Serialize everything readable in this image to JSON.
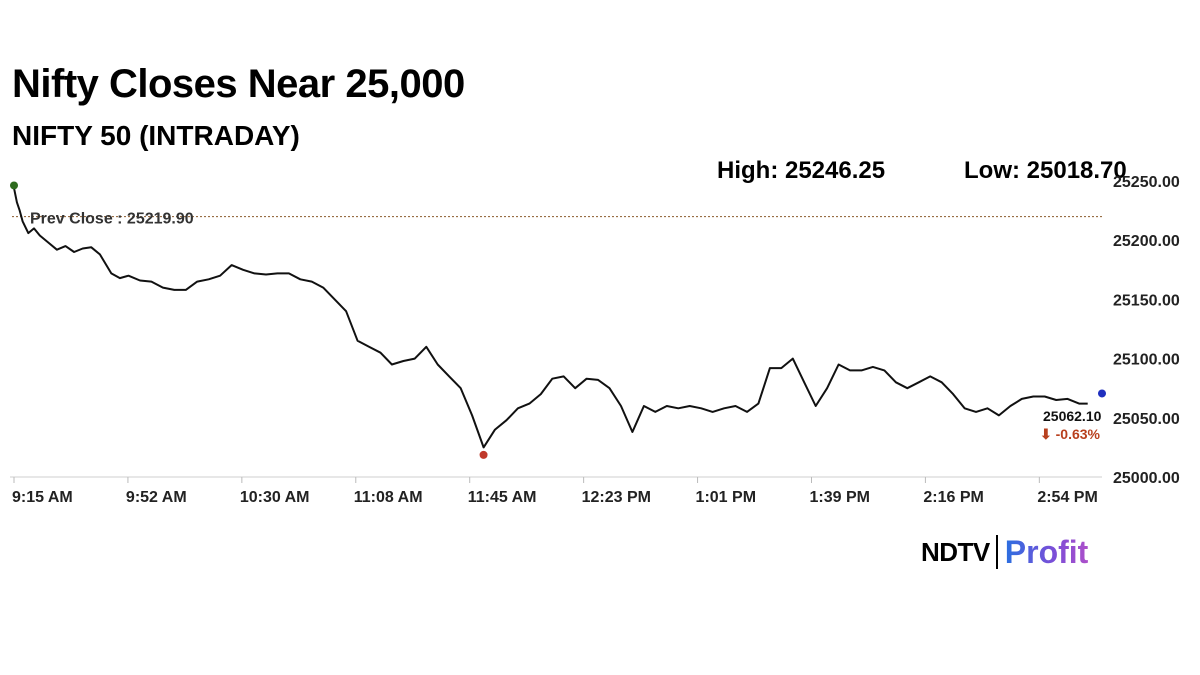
{
  "headline": "Nifty Closes Near 25,000",
  "subtitle": "NIFTY 50 (INTRADAY)",
  "stats": {
    "high": "High: 25246.25",
    "low": "Low: 25018.70"
  },
  "prev_close_label": "Prev Close : 25219.90",
  "last": {
    "value": "25062.10",
    "change": "⬇ -0.63%"
  },
  "logo": {
    "brand": "NDTV",
    "product": "Profit"
  },
  "colors": {
    "line": "#111111",
    "prev_close_line": "#8b5a2b",
    "start_marker": "#2e6b1e",
    "low_marker": "#c0392b",
    "end_marker": "#1f2fbf",
    "change_negative": "#b8401e"
  },
  "chart_data": {
    "type": "line",
    "title": "NIFTY 50 (INTRADAY)",
    "ylim": [
      25000,
      25250
    ],
    "y_ticks": [
      25000,
      25050,
      25100,
      25150,
      25200,
      25250
    ],
    "y_tick_labels": [
      "25000.00",
      "25050.00",
      "25100.00",
      "25150.00",
      "25200.00",
      "25250.00"
    ],
    "x_tick_labels": [
      "9:15 AM",
      "9:52 AM",
      "10:30 AM",
      "11:08 AM",
      "11:45 AM",
      "12:23 PM",
      "1:01 PM",
      "1:39 PM",
      "2:16 PM",
      "2:54 PM"
    ],
    "x_range_minutes": [
      0,
      380
    ],
    "prev_close": 25219.9,
    "high": 25246.25,
    "low": 25018.7,
    "last": 25062.1,
    "change_pct": -0.63,
    "grid": false,
    "series": [
      {
        "x": [
          0,
          1,
          2,
          3,
          5,
          7,
          9,
          12,
          15,
          18,
          21,
          24,
          27,
          30,
          34,
          37,
          40,
          44,
          48,
          52,
          56,
          60,
          64,
          68,
          72,
          76,
          80,
          84,
          88,
          92,
          96,
          100,
          104,
          108,
          112,
          116,
          120,
          124,
          128,
          132,
          136,
          140,
          144,
          148,
          152,
          156,
          160,
          164,
          168,
          172,
          176,
          180,
          184,
          188,
          192,
          196,
          200,
          204,
          208,
          212,
          216,
          220,
          224,
          228,
          232,
          236,
          240,
          244,
          248,
          252,
          256,
          260,
          264,
          268,
          272,
          276,
          280,
          284,
          288,
          292,
          296,
          300,
          304,
          308,
          312,
          316,
          320,
          324,
          328,
          332,
          336,
          340,
          344,
          348,
          352,
          356,
          360,
          364,
          368,
          372,
          375
        ],
        "y": [
          25244,
          25232,
          25225,
          25216,
          25206,
          25210,
          25204,
          25198,
          25192,
          25195,
          25190,
          25193,
          25194,
          25188,
          25172,
          25168,
          25170,
          25166,
          25165,
          25160,
          25158,
          25158,
          25165,
          25167,
          25170,
          25179,
          25175,
          25172,
          25171,
          25172,
          25172,
          25167,
          25165,
          25160,
          25150,
          25140,
          25115,
          25110,
          25105,
          25095,
          25098,
          25100,
          25110,
          25095,
          25085,
          25075,
          25052,
          25025,
          25040,
          25048,
          25058,
          25062,
          25070,
          25083,
          25085,
          25075,
          25083,
          25082,
          25075,
          25060,
          25038,
          25060,
          25055,
          25060,
          25058,
          25060,
          25058,
          25055,
          25058,
          25060,
          25055,
          25062,
          25092,
          25092,
          25100,
          25080,
          25060,
          25075,
          25095,
          25090,
          25090,
          25093,
          25090,
          25080,
          25075,
          25080,
          25085,
          25080,
          25070,
          25058,
          25055,
          25058,
          25052,
          25060,
          25066,
          25068,
          25068,
          25065,
          25066,
          25062,
          25062
        ]
      }
    ]
  }
}
